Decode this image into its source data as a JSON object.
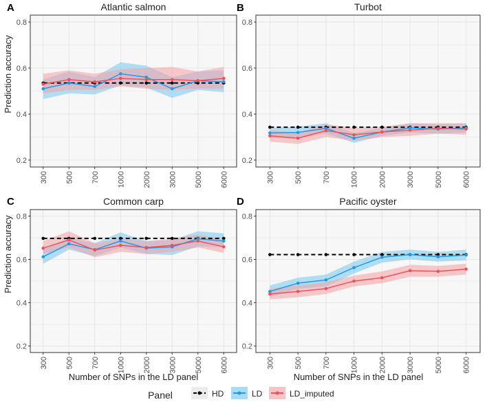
{
  "colors": {
    "HD": "#000000",
    "LD": "#1e9be8",
    "LD_imputed": "#f0505a",
    "LD_band": "#78c8f0",
    "LD_imputed_band": "#f4a0a4",
    "panel_bg": "#f7f7f7",
    "grid": "#e6e6e6",
    "axis_text": "#4d4d4d"
  },
  "legend": {
    "title": "Panel",
    "items": [
      {
        "key": "HD",
        "label": "HD"
      },
      {
        "key": "LD",
        "label": "LD"
      },
      {
        "key": "LD_imputed",
        "label": "LD_imputed"
      }
    ]
  },
  "chart_data": [
    {
      "panel": "A",
      "title": "Atlantic salmon",
      "type": "line",
      "categories": [
        "300",
        "500",
        "700",
        "1000",
        "2000",
        "3000",
        "5000",
        "6000"
      ],
      "ylabel": "Prediction accuracy",
      "xlabel": "",
      "ylim": [
        0.17,
        0.83
      ],
      "yticks": [
        0.2,
        0.4,
        0.6,
        0.8
      ],
      "series": [
        {
          "name": "HD",
          "values": [
            0.535,
            0.535,
            0.535,
            0.535,
            0.535,
            0.535,
            0.535,
            0.535
          ]
        },
        {
          "name": "LD",
          "values": [
            0.51,
            0.535,
            0.52,
            0.575,
            0.56,
            0.51,
            0.545,
            0.54
          ],
          "lower": [
            0.465,
            0.49,
            0.485,
            0.525,
            0.515,
            0.47,
            0.505,
            0.495
          ],
          "upper": [
            0.55,
            0.585,
            0.56,
            0.625,
            0.61,
            0.56,
            0.585,
            0.59
          ]
        },
        {
          "name": "LD_imputed",
          "values": [
            0.53,
            0.55,
            0.54,
            0.555,
            0.55,
            0.55,
            0.545,
            0.555
          ],
          "lower": [
            0.49,
            0.505,
            0.505,
            0.52,
            0.51,
            0.505,
            0.51,
            0.51
          ],
          "upper": [
            0.575,
            0.59,
            0.575,
            0.595,
            0.6,
            0.605,
            0.585,
            0.605
          ]
        }
      ]
    },
    {
      "panel": "B",
      "title": "Turbot",
      "type": "line",
      "categories": [
        "300",
        "500",
        "700",
        "1000",
        "2000",
        "3000",
        "5000",
        "6000"
      ],
      "ylabel": "",
      "xlabel": "",
      "ylim": [
        0.17,
        0.83
      ],
      "yticks": [
        0.2,
        0.4,
        0.6,
        0.8
      ],
      "series": [
        {
          "name": "HD",
          "values": [
            0.343,
            0.343,
            0.343,
            0.343,
            0.343,
            0.343,
            0.343,
            0.343
          ]
        },
        {
          "name": "LD",
          "values": [
            0.318,
            0.32,
            0.338,
            0.295,
            0.322,
            0.34,
            0.335,
            0.34
          ],
          "lower": [
            0.295,
            0.295,
            0.315,
            0.275,
            0.305,
            0.32,
            0.315,
            0.32
          ],
          "upper": [
            0.34,
            0.345,
            0.36,
            0.318,
            0.34,
            0.36,
            0.355,
            0.36
          ]
        },
        {
          "name": "LD_imputed",
          "values": [
            0.305,
            0.295,
            0.328,
            0.31,
            0.322,
            0.33,
            0.338,
            0.335
          ],
          "lower": [
            0.28,
            0.27,
            0.3,
            0.285,
            0.3,
            0.305,
            0.315,
            0.31
          ],
          "upper": [
            0.33,
            0.32,
            0.355,
            0.34,
            0.345,
            0.36,
            0.36,
            0.36
          ]
        }
      ]
    },
    {
      "panel": "C",
      "title": "Common carp",
      "type": "line",
      "categories": [
        "300",
        "500",
        "700",
        "1000",
        "2000",
        "3000",
        "5000",
        "6000"
      ],
      "ylabel": "Prediction accuracy",
      "xlabel": "Number of SNPs in the LD panel",
      "ylim": [
        0.17,
        0.83
      ],
      "yticks": [
        0.2,
        0.4,
        0.6,
        0.8
      ],
      "series": [
        {
          "name": "HD",
          "values": [
            0.697,
            0.697,
            0.697,
            0.697,
            0.697,
            0.697,
            0.697,
            0.697
          ]
        },
        {
          "name": "LD",
          "values": [
            0.612,
            0.672,
            0.645,
            0.685,
            0.652,
            0.658,
            0.695,
            0.685
          ],
          "lower": [
            0.58,
            0.645,
            0.615,
            0.655,
            0.625,
            0.62,
            0.66,
            0.655
          ],
          "upper": [
            0.645,
            0.7,
            0.675,
            0.725,
            0.685,
            0.69,
            0.73,
            0.72
          ]
        },
        {
          "name": "LD_imputed",
          "values": [
            0.652,
            0.69,
            0.643,
            0.665,
            0.655,
            0.665,
            0.685,
            0.658
          ],
          "lower": [
            0.625,
            0.655,
            0.61,
            0.635,
            0.625,
            0.635,
            0.655,
            0.63
          ],
          "upper": [
            0.685,
            0.73,
            0.675,
            0.695,
            0.685,
            0.695,
            0.715,
            0.69
          ]
        }
      ]
    },
    {
      "panel": "D",
      "title": "Pacific oyster",
      "type": "line",
      "categories": [
        "300",
        "500",
        "700",
        "1000",
        "2000",
        "3000",
        "5000",
        "6000"
      ],
      "ylabel": "",
      "xlabel": "Number of SNPs in the LD panel",
      "ylim": [
        0.17,
        0.83
      ],
      "yticks": [
        0.2,
        0.4,
        0.6,
        0.8
      ],
      "series": [
        {
          "name": "HD",
          "values": [
            0.622,
            0.622,
            0.622,
            0.622,
            0.622,
            0.622,
            0.622,
            0.622
          ]
        },
        {
          "name": "LD",
          "values": [
            0.452,
            0.49,
            0.505,
            0.562,
            0.61,
            0.622,
            0.612,
            0.62
          ],
          "lower": [
            0.425,
            0.465,
            0.475,
            0.535,
            0.585,
            0.6,
            0.59,
            0.595
          ],
          "upper": [
            0.48,
            0.515,
            0.53,
            0.59,
            0.635,
            0.645,
            0.635,
            0.645
          ]
        },
        {
          "name": "LD_imputed",
          "values": [
            0.44,
            0.452,
            0.465,
            0.5,
            0.515,
            0.548,
            0.545,
            0.555
          ],
          "lower": [
            0.415,
            0.425,
            0.44,
            0.475,
            0.49,
            0.52,
            0.52,
            0.53
          ],
          "upper": [
            0.465,
            0.48,
            0.495,
            0.525,
            0.545,
            0.575,
            0.57,
            0.58
          ]
        }
      ]
    }
  ]
}
